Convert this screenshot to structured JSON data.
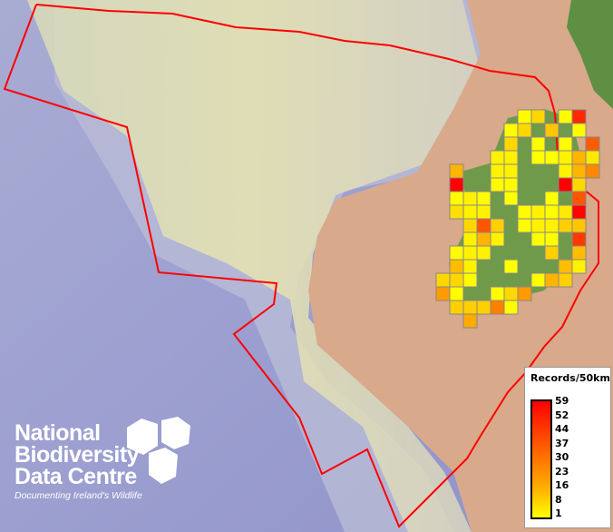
{
  "legend": {
    "title": "Records/50km",
    "ticks": [
      "59",
      "52",
      "44",
      "37",
      "30",
      "23",
      "16",
      "8",
      "1"
    ],
    "color_low": "#ffff00",
    "color_high": "#ff0000"
  },
  "logo": {
    "line1": "National",
    "line2": "Biodiversity",
    "line3": "Data Centre",
    "tagline": "Documenting Ireland's Wildlife"
  },
  "boundary_color": "#ff0000",
  "grid_cells": [
    [
      0,
      6,
      2
    ],
    [
      0,
      7,
      10
    ],
    [
      0,
      9,
      2
    ],
    [
      0,
      10,
      50
    ],
    [
      1,
      5,
      2
    ],
    [
      1,
      6,
      10
    ],
    [
      1,
      8,
      14
    ],
    [
      1,
      10,
      2
    ],
    [
      2,
      5,
      10
    ],
    [
      2,
      7,
      2
    ],
    [
      2,
      9,
      2
    ],
    [
      2,
      11,
      38
    ],
    [
      3,
      4,
      4
    ],
    [
      3,
      5,
      4
    ],
    [
      3,
      7,
      1
    ],
    [
      3,
      8,
      1
    ],
    [
      3,
      9,
      4
    ],
    [
      3,
      10,
      18
    ],
    [
      3,
      11,
      6
    ],
    [
      4,
      1,
      18
    ],
    [
      4,
      4,
      4
    ],
    [
      4,
      5,
      4
    ],
    [
      4,
      9,
      4
    ],
    [
      4,
      10,
      18
    ],
    [
      4,
      11,
      28
    ],
    [
      5,
      1,
      59
    ],
    [
      5,
      4,
      2
    ],
    [
      5,
      5,
      2
    ],
    [
      5,
      9,
      59
    ],
    [
      5,
      10,
      10
    ],
    [
      6,
      1,
      2
    ],
    [
      6,
      2,
      4
    ],
    [
      6,
      3,
      2
    ],
    [
      6,
      5,
      1
    ],
    [
      6,
      8,
      1
    ],
    [
      6,
      10,
      40
    ],
    [
      7,
      1,
      8
    ],
    [
      7,
      2,
      4
    ],
    [
      7,
      3,
      4
    ],
    [
      7,
      6,
      2
    ],
    [
      7,
      7,
      4
    ],
    [
      7,
      8,
      2
    ],
    [
      7,
      9,
      6
    ],
    [
      7,
      10,
      58
    ],
    [
      8,
      2,
      10
    ],
    [
      8,
      3,
      40
    ],
    [
      8,
      4,
      12
    ],
    [
      8,
      6,
      2
    ],
    [
      8,
      7,
      4
    ],
    [
      8,
      8,
      4
    ],
    [
      8,
      9,
      12
    ],
    [
      8,
      10,
      14
    ],
    [
      9,
      2,
      4
    ],
    [
      9,
      3,
      18
    ],
    [
      9,
      4,
      4
    ],
    [
      9,
      7,
      2
    ],
    [
      9,
      8,
      1
    ],
    [
      9,
      10,
      46
    ],
    [
      10,
      1,
      2
    ],
    [
      10,
      2,
      4
    ],
    [
      10,
      3,
      4
    ],
    [
      10,
      8,
      12
    ],
    [
      10,
      10,
      16
    ],
    [
      11,
      1,
      16
    ],
    [
      11,
      2,
      4
    ],
    [
      11,
      5,
      1
    ],
    [
      11,
      9,
      16
    ],
    [
      11,
      10,
      4
    ],
    [
      12,
      0,
      10
    ],
    [
      12,
      1,
      10
    ],
    [
      12,
      2,
      2
    ],
    [
      12,
      7,
      2
    ],
    [
      12,
      8,
      18
    ],
    [
      12,
      9,
      12
    ],
    [
      13,
      0,
      24
    ],
    [
      13,
      1,
      2
    ],
    [
      13,
      4,
      2
    ],
    [
      13,
      5,
      10
    ],
    [
      13,
      6,
      24
    ],
    [
      14,
      1,
      12
    ],
    [
      14,
      2,
      12
    ],
    [
      14,
      3,
      12
    ],
    [
      14,
      4,
      30
    ],
    [
      14,
      5,
      2
    ],
    [
      15,
      2,
      20
    ]
  ]
}
